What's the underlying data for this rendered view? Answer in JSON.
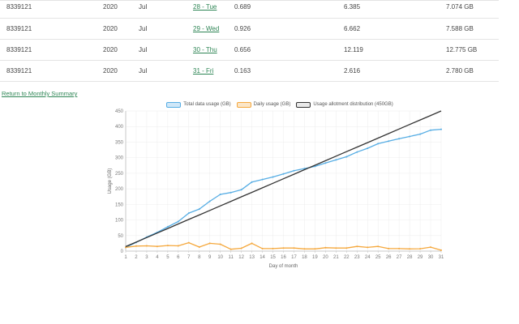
{
  "table": {
    "rows": [
      {
        "id": "8339121",
        "year": "2020",
        "month": "Jul",
        "day": "28 - Tue",
        "value_a": "0.689",
        "value_b": "6.385",
        "total": "7.074 GB"
      },
      {
        "id": "8339121",
        "year": "2020",
        "month": "Jul",
        "day": "29 - Wed",
        "value_a": "0.926",
        "value_b": "6.662",
        "total": "7.588 GB"
      },
      {
        "id": "8339121",
        "year": "2020",
        "month": "Jul",
        "day": "30 - Thu",
        "value_a": "0.656",
        "value_b": "12.119",
        "total": "12.775 GB"
      },
      {
        "id": "8339121",
        "year": "2020",
        "month": "Jul",
        "day": "31 - Fri",
        "value_a": "0.163",
        "value_b": "2.616",
        "total": "2.780 GB"
      }
    ]
  },
  "links": {
    "return_to_monthly_summary": "Return to Monthly Summary"
  },
  "colors": {
    "link_green": "#2e8555",
    "total_line": "#56ade4",
    "daily_line": "#f5a83d",
    "allotment_line": "#333333",
    "grid": "#ececec",
    "axis": "#c9c9c9"
  },
  "chart_data": {
    "type": "line",
    "title": "",
    "xlabel": "Day of month",
    "ylabel": "Usage (GB)",
    "x": [
      1,
      2,
      3,
      4,
      5,
      6,
      7,
      8,
      9,
      10,
      11,
      12,
      13,
      14,
      15,
      16,
      17,
      18,
      19,
      20,
      21,
      22,
      23,
      24,
      25,
      26,
      27,
      28,
      29,
      30,
      31
    ],
    "ylim": [
      0,
      450
    ],
    "ytick_step": 50,
    "grid": true,
    "legend_position": "top",
    "series": [
      {
        "name": "Total data usage (GB)",
        "color": "#56ade4",
        "swatch_fill": "#cfe7f8",
        "markers": true,
        "values": [
          12,
          28,
          45,
          60,
          78,
          95,
          122,
          135,
          160,
          182,
          188,
          197,
          222,
          230,
          238,
          248,
          258,
          265,
          272,
          283,
          293,
          303,
          318,
          330,
          345,
          353,
          361,
          368.1,
          375.7,
          388.4,
          391.2
        ]
      },
      {
        "name": "Daily usage (GB)",
        "color": "#f5a83d",
        "swatch_fill": "#fbe6c8",
        "markers": true,
        "values": [
          12,
          16,
          17,
          15,
          18,
          17,
          27,
          13,
          25,
          22,
          6,
          9,
          25,
          8,
          8,
          10,
          10,
          7,
          7,
          11,
          10,
          10,
          15,
          12,
          15,
          8,
          8,
          7.074,
          7.588,
          12.775,
          2.78
        ]
      },
      {
        "name": "Usage allotment distribution (450GB)",
        "color": "#333333",
        "swatch_fill": "#e9e9e9",
        "markers": false,
        "values": [
          14.5,
          29,
          43.5,
          58.1,
          72.6,
          87.1,
          101.6,
          116.1,
          130.6,
          145.2,
          159.7,
          174.2,
          188.7,
          203.2,
          217.7,
          232.3,
          246.8,
          261.3,
          275.8,
          290.3,
          304.8,
          319.4,
          333.9,
          348.4,
          362.9,
          377.4,
          391.9,
          406.5,
          421,
          435.5,
          450
        ]
      }
    ]
  }
}
